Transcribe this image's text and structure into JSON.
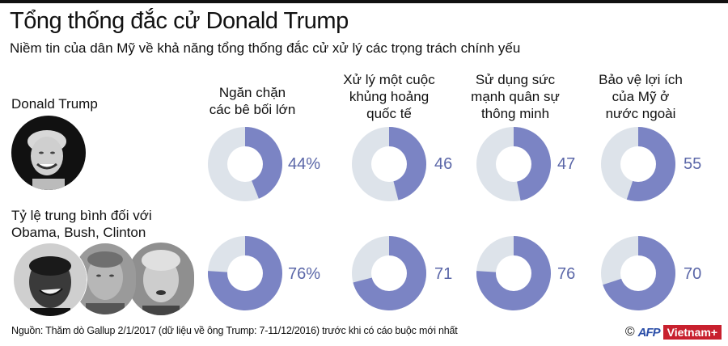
{
  "header": {
    "title": "Tổng thống đắc cử Donald Trump",
    "subtitle": "Niềm tin của dân Mỹ về khả năng tổng thống đắc cử xử lý các trọng trách chính yếu"
  },
  "rows": [
    {
      "label": "Donald Trump",
      "label_line2": ""
    },
    {
      "label": "Tỷ lệ trung bình đối với",
      "label_line2": "Obama, Bush, Clinton"
    }
  ],
  "columns": [
    {
      "l1": "",
      "l2": "Ngăn chặn",
      "l3": "các bê bối lớn"
    },
    {
      "l1": "Xử lý một cuộc",
      "l2": "khủng hoảng",
      "l3": "quốc tế"
    },
    {
      "l1": "Sử dụng sức",
      "l2": "mạnh quân sự",
      "l3": "thông minh"
    },
    {
      "l1": "Bảo vệ lợi ích",
      "l2": "của Mỹ ở",
      "l3": "nước ngoài"
    }
  ],
  "values": {
    "trump": [
      "44%",
      "46",
      "47",
      "55"
    ],
    "avg": [
      "76%",
      "71",
      "76",
      "70"
    ]
  },
  "colors": {
    "filled": "#7b84c4",
    "empty": "#dde3ea",
    "value_text": "#5b67a8"
  },
  "footer": {
    "source": "Nguồn: Thăm dò Gallup 2/1/2017 (dữ liệu về  ông Trump: 7-11/12/2016) trước khi có cáo buộc mới nhất",
    "copyright": "©",
    "afp": "AFP",
    "vietnam": "Vietnam+"
  },
  "chart_data": {
    "type": "pie",
    "title": "Tổng thống đắc cử Donald Trump",
    "subtitle": "Niềm tin của dân Mỹ về khả năng tổng thống đắc cử xử lý các trọng trách chính yếu",
    "categories": [
      "Ngăn chặn các bê bối lớn",
      "Xử lý một cuộc khủng hoảng quốc tế",
      "Sử dụng sức mạnh quân sự thông minh",
      "Bảo vệ lợi ích của Mỹ ở nước ngoài"
    ],
    "series": [
      {
        "name": "Donald Trump",
        "values": [
          44,
          46,
          47,
          55
        ]
      },
      {
        "name": "Tỷ lệ trung bình đối với Obama, Bush, Clinton",
        "values": [
          76,
          71,
          76,
          70
        ]
      }
    ],
    "unit": "%",
    "style": "donut"
  }
}
